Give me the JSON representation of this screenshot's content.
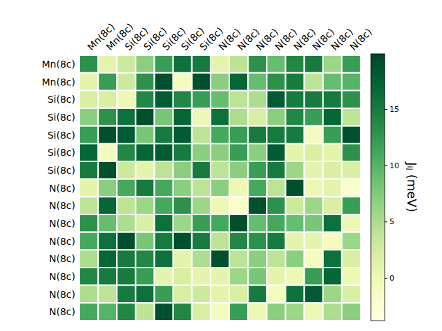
{
  "chart_data": {
    "type": "heatmap",
    "x_labels": [
      "Mn(8c)",
      "Mn(8c)",
      "Si(8c)",
      "Si(8c)",
      "Si(8c)",
      "Si(8c)",
      "Si(8c)",
      "N(8c)",
      "N(8c)",
      "N(8c)",
      "N(8c)",
      "N(8c)",
      "N(8c)",
      "N(8c)",
      "N(8c)"
    ],
    "y_labels": [
      "Mn(8c)",
      "Mn(8c)",
      "Si(8c)",
      "Si(8c)",
      "Si(8c)",
      "Si(8c)",
      "Si(8c)",
      "N(8c)",
      "N(8c)",
      "N(8c)",
      "N(8c)",
      "N(8c)",
      "N(8c)",
      "N(8c)",
      "N(8c)"
    ],
    "values": [
      [
        13,
        1,
        3,
        7,
        12,
        16,
        15,
        1,
        4,
        13,
        9,
        14,
        15,
        6,
        12
      ],
      [
        1,
        12,
        3,
        13,
        19,
        -1,
        19,
        7,
        17,
        9,
        13,
        15,
        4,
        9,
        10
      ],
      [
        2,
        2,
        0,
        14,
        18,
        14,
        12,
        9,
        4,
        5,
        18,
        15,
        15,
        15,
        13
      ],
      [
        7,
        13,
        16,
        19,
        8,
        17,
        0,
        16,
        5,
        2,
        7,
        14,
        12,
        17,
        4
      ],
      [
        12,
        19,
        18,
        8,
        15,
        18,
        4,
        11,
        12,
        15,
        15,
        15,
        -1,
        12,
        19
      ],
      [
        17,
        -1,
        14,
        17,
        18,
        15,
        7,
        7,
        12,
        7,
        18,
        1,
        2,
        1,
        13
      ],
      [
        15,
        19,
        3,
        1,
        4,
        7,
        15,
        4,
        7,
        12,
        15,
        6,
        1,
        2,
        2
      ],
      [
        1,
        7,
        11,
        15,
        11,
        7,
        4,
        7,
        0,
        11,
        4,
        19,
        0,
        1,
        -2
      ],
      [
        4,
        17,
        4,
        6,
        11,
        13,
        6,
        0,
        -2,
        19,
        13,
        3,
        6,
        2,
        12
      ],
      [
        13,
        9,
        5,
        2,
        16,
        6,
        12,
        11,
        19,
        9,
        11,
        9,
        8,
        16,
        0
      ],
      [
        11,
        16,
        19,
        8,
        15,
        19,
        15,
        4,
        14,
        13,
        15,
        1,
        1,
        -1,
        6
      ],
      [
        5,
        17,
        15,
        14,
        16,
        1,
        5,
        19,
        4,
        7,
        4,
        7,
        -1,
        16,
        2
      ],
      [
        14,
        15,
        15,
        12,
        1,
        2,
        1,
        1,
        6,
        8,
        1,
        0,
        12,
        17,
        0
      ],
      [
        5,
        4,
        15,
        16,
        12,
        2,
        3,
        1,
        2,
        15,
        -1,
        16,
        18,
        6,
        2
      ],
      [
        11,
        10,
        14,
        4,
        19,
        14,
        2,
        -1,
        12,
        0,
        7,
        6,
        0,
        5,
        7
      ]
    ],
    "colorbar_range": [
      -3.8,
      19.9
    ],
    "colorbar_ticks": [
      0,
      5,
      10,
      15
    ],
    "colorbar_label": "Jᵢⱼ (meV)"
  }
}
